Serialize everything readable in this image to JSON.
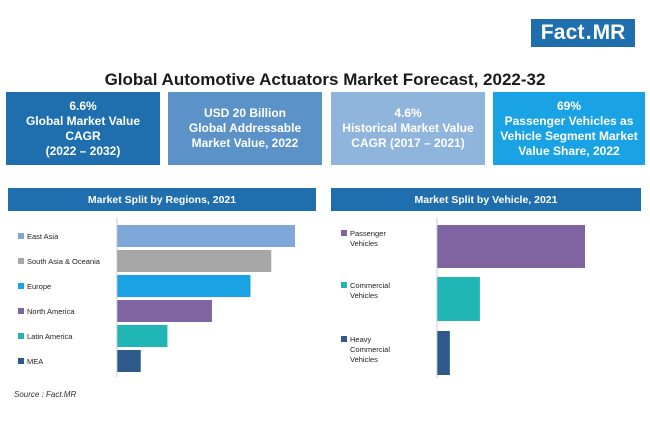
{
  "logo": {
    "text1": "Fact",
    "dot": ".",
    "text2": "MR",
    "color": "#1f6fae"
  },
  "title": "Global Automotive Actuators Market Forecast, 2022-32",
  "kpis": [
    {
      "lines": [
        "6.6%",
        "Global Market Value",
        "CAGR",
        "(2022 – 2032)"
      ],
      "color": "#1f6fae"
    },
    {
      "lines": [
        "USD 20 Billion",
        "Global Addressable",
        "Market Value, 2022"
      ],
      "color": "#5b93c9"
    },
    {
      "lines": [
        "4.6%",
        "Historical Market Value",
        "CAGR (2017 – 2021)"
      ],
      "color": "#8fb5dc"
    },
    {
      "lines": [
        "69%",
        "Passenger Vehicles as",
        "Vehicle Segment Market",
        "Value Share, 2022"
      ],
      "color": "#1aa3e4"
    }
  ],
  "chart_data": [
    {
      "type": "bar",
      "orientation": "horizontal",
      "title": "Market Split by Regions, 2021",
      "categories": [
        "East Asia",
        "South Asia & Oceania",
        "Europe",
        "North America",
        "Latin America",
        "MEA"
      ],
      "values": [
        30,
        26,
        22.5,
        16,
        8.5,
        4
      ],
      "colors": [
        "#7fa8d8",
        "#a6a6a6",
        "#1aa3e4",
        "#8064a2",
        "#21b6b6",
        "#2d5a8a"
      ],
      "xlim": [
        0,
        32
      ],
      "grid": false,
      "legend": "left"
    },
    {
      "type": "bar",
      "orientation": "horizontal",
      "title": "Market Split by Vehicle, 2021",
      "categories": [
        [
          "Passenger",
          "Vehicles"
        ],
        [
          "Commercial",
          "Vehicles"
        ],
        [
          "Heavy",
          "Commercial",
          "Vehicles"
        ]
      ],
      "values": [
        69,
        20,
        6
      ],
      "colors": [
        "#8064a2",
        "#21b6b6",
        "#2d5a8a"
      ],
      "xlim": [
        0,
        85
      ],
      "grid": false,
      "legend": "left"
    }
  ],
  "source": "Source : Fact.MR"
}
